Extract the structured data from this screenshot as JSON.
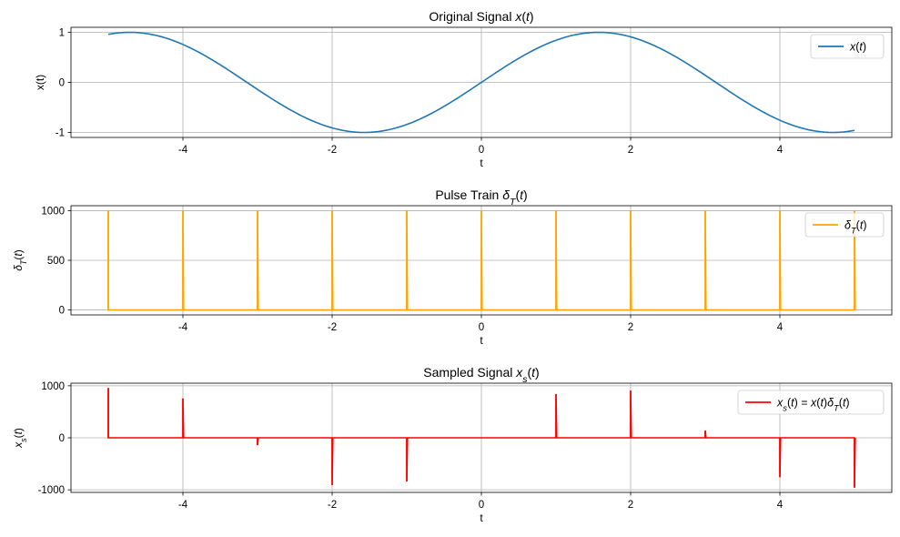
{
  "chart_data": [
    {
      "type": "line",
      "title": "Original Signal x(t)",
      "title_parts": [
        {
          "text": "Original Signal ",
          "italic": false
        },
        {
          "text": "x",
          "italic": true
        },
        {
          "text": "(",
          "italic": false
        },
        {
          "text": "t",
          "italic": true
        },
        {
          "text": ")",
          "italic": false
        }
      ],
      "xlabel": "t",
      "ylabel": "x(t)",
      "xlim": [
        -5.5,
        5.5
      ],
      "ylim": [
        -1.1,
        1.1
      ],
      "xticks": [
        -4,
        -2,
        0,
        2,
        4
      ],
      "xtick_labels": [
        "-4",
        "-2",
        "0",
        "2",
        "4"
      ],
      "yticks": [
        -1,
        0,
        1
      ],
      "ytick_labels": [
        "-1",
        "0",
        "1"
      ],
      "grid": true,
      "legend_position": "upper-right",
      "series": [
        {
          "name": "x(t)",
          "color": "#1f77b4",
          "function": "sin",
          "x_range": [
            -5,
            5
          ],
          "samples": 200,
          "legend_parts": [
            {
              "text": "x",
              "italic": true
            },
            {
              "text": "(",
              "italic": false
            },
            {
              "text": "t",
              "italic": true
            },
            {
              "text": ")",
              "italic": false
            }
          ]
        }
      ]
    },
    {
      "type": "line",
      "title": "Pulse Train δT(t)",
      "title_parts": [
        {
          "text": "Pulse Train ",
          "italic": false
        },
        {
          "text": "δ",
          "italic": true
        },
        {
          "text": "T",
          "italic": true,
          "sub": true
        },
        {
          "text": "(",
          "italic": false
        },
        {
          "text": "t",
          "italic": true
        },
        {
          "text": ")",
          "italic": false
        }
      ],
      "xlabel": "t",
      "ylabel": "δT(t)",
      "ylabel_parts": [
        {
          "text": "δ",
          "italic": true
        },
        {
          "text": "T",
          "italic": true,
          "sub": true
        },
        {
          "text": "(",
          "italic": false
        },
        {
          "text": "t",
          "italic": true
        },
        {
          "text": ")",
          "italic": false
        }
      ],
      "xlim": [
        -5.5,
        5.5
      ],
      "ylim": [
        -50,
        1050
      ],
      "xticks": [
        -4,
        -2,
        0,
        2,
        4
      ],
      "xtick_labels": [
        "-4",
        "-2",
        "0",
        "2",
        "4"
      ],
      "yticks": [
        0,
        500,
        1000
      ],
      "ytick_labels": [
        "0",
        "500",
        "1000"
      ],
      "grid": true,
      "legend_position": "upper-right",
      "series": [
        {
          "name": "δT(t)",
          "color": "#ffa500",
          "baseline": 0,
          "impulse_times": [
            -5,
            -4,
            -3,
            -2,
            -1,
            0,
            1,
            2,
            3,
            4,
            5
          ],
          "impulse_values": [
            1000,
            1000,
            1000,
            1000,
            1000,
            1000,
            1000,
            1000,
            1000,
            1000,
            1000
          ],
          "legend_parts": [
            {
              "text": "δ",
              "italic": true
            },
            {
              "text": "T",
              "italic": true,
              "sub": true
            },
            {
              "text": "(",
              "italic": false
            },
            {
              "text": "t",
              "italic": true
            },
            {
              "text": ")",
              "italic": false
            }
          ]
        }
      ]
    },
    {
      "type": "line",
      "title": "Sampled Signal xs(t)",
      "title_parts": [
        {
          "text": "Sampled Signal ",
          "italic": false
        },
        {
          "text": "x",
          "italic": true
        },
        {
          "text": "s",
          "italic": true,
          "sub": true
        },
        {
          "text": "(",
          "italic": false
        },
        {
          "text": "t",
          "italic": true
        },
        {
          "text": ")",
          "italic": false
        }
      ],
      "xlabel": "t",
      "ylabel": "xs(t)",
      "ylabel_parts": [
        {
          "text": "x",
          "italic": true
        },
        {
          "text": "s",
          "italic": true,
          "sub": true
        },
        {
          "text": "(",
          "italic": false
        },
        {
          "text": "t",
          "italic": true
        },
        {
          "text": ")",
          "italic": false
        }
      ],
      "xlim": [
        -5.5,
        5.5
      ],
      "ylim": [
        -1050,
        1050
      ],
      "xticks": [
        -4,
        -2,
        0,
        2,
        4
      ],
      "xtick_labels": [
        "-4",
        "-2",
        "0",
        "2",
        "4"
      ],
      "yticks": [
        -1000,
        0,
        1000
      ],
      "ytick_labels": [
        "-1000",
        "0",
        "1000"
      ],
      "grid": true,
      "legend_position": "upper-right",
      "series": [
        {
          "name": "xs(t) = x(t)δT(t)",
          "color": "#ff0000",
          "baseline": 0,
          "impulse_times": [
            -5,
            -4,
            -3,
            -2,
            -1,
            0,
            1,
            2,
            3,
            4,
            5
          ],
          "impulse_values": [
            959,
            757,
            -141,
            -909,
            -841,
            0,
            841,
            909,
            141,
            -757,
            -959
          ],
          "legend_parts": [
            {
              "text": "x",
              "italic": true
            },
            {
              "text": "s",
              "italic": true,
              "sub": true
            },
            {
              "text": "(",
              "italic": false
            },
            {
              "text": "t",
              "italic": true
            },
            {
              "text": ") = ",
              "italic": false
            },
            {
              "text": "x",
              "italic": true
            },
            {
              "text": "(",
              "italic": false
            },
            {
              "text": "t",
              "italic": true
            },
            {
              "text": ")",
              "italic": false
            },
            {
              "text": "δ",
              "italic": true
            },
            {
              "text": "T",
              "italic": true,
              "sub": true
            },
            {
              "text": "(",
              "italic": false
            },
            {
              "text": "t",
              "italic": true
            },
            {
              "text": ")",
              "italic": false
            }
          ]
        }
      ]
    }
  ]
}
